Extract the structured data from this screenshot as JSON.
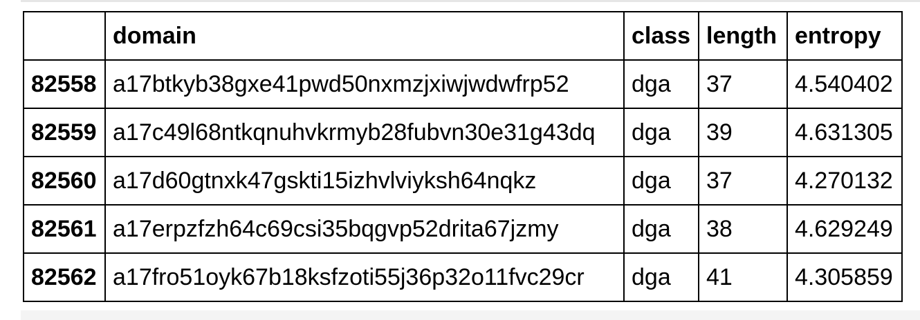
{
  "table": {
    "index_header": "",
    "columns": [
      "domain",
      "class",
      "length",
      "entropy"
    ],
    "rows": [
      {
        "index": "82558",
        "domain": "a17btkyb38gxe41pwd50nxmzjxiwjwdwfrp52",
        "class": "dga",
        "length": "37",
        "entropy": "4.540402"
      },
      {
        "index": "82559",
        "domain": "a17c49l68ntkqnuhvkrmyb28fubvn30e31g43dq",
        "class": "dga",
        "length": "39",
        "entropy": "4.631305"
      },
      {
        "index": "82560",
        "domain": "a17d60gtnxk47gskti15izhvlviyksh64nqkz",
        "class": "dga",
        "length": "37",
        "entropy": "4.270132"
      },
      {
        "index": "82561",
        "domain": "a17erpzfzh64c69csi35bqgvp52drita67jzmy",
        "class": "dga",
        "length": "38",
        "entropy": "4.629249"
      },
      {
        "index": "82562",
        "domain": "a17fro51oyk67b18ksfzoti55j36p32o11fvc29cr",
        "class": "dga",
        "length": "41",
        "entropy": "4.305859"
      }
    ]
  }
}
